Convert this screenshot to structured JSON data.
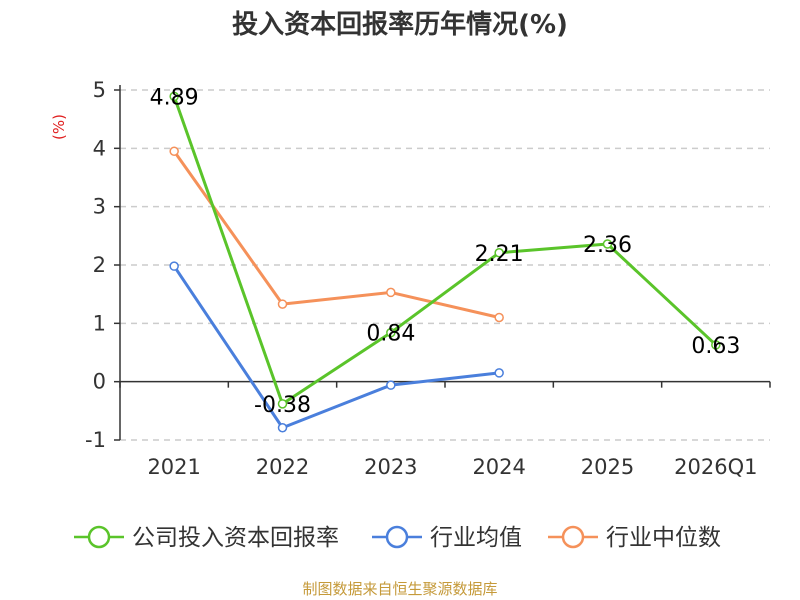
{
  "title": "投入资本回报率历年情况(%)",
  "source": "制图数据来自恒生聚源数据库",
  "chart_data": {
    "type": "line",
    "title": "投入资本回报率历年情况(%)",
    "ylabel": "(%)",
    "ylim": [
      -1,
      5
    ],
    "yticks": [
      -1,
      0,
      1,
      2,
      3,
      4,
      5
    ],
    "categories": [
      "2021",
      "2022",
      "2023",
      "2024",
      "2025",
      "2026Q1"
    ],
    "grid": true,
    "legend_position": "bottom",
    "series": [
      {
        "name": "公司投入资本回报率",
        "color": "#5ac42a",
        "values": [
          4.89,
          -0.38,
          0.84,
          2.21,
          2.36,
          0.63
        ],
        "show_labels": true
      },
      {
        "name": "行业均值",
        "color": "#4a7fdc",
        "values": [
          1.98,
          -0.79,
          -0.06,
          0.15,
          null,
          null
        ],
        "show_labels": false
      },
      {
        "name": "行业中位数",
        "color": "#f5915a",
        "values": [
          3.95,
          1.33,
          1.53,
          1.1,
          null,
          null
        ],
        "show_labels": false
      }
    ]
  }
}
